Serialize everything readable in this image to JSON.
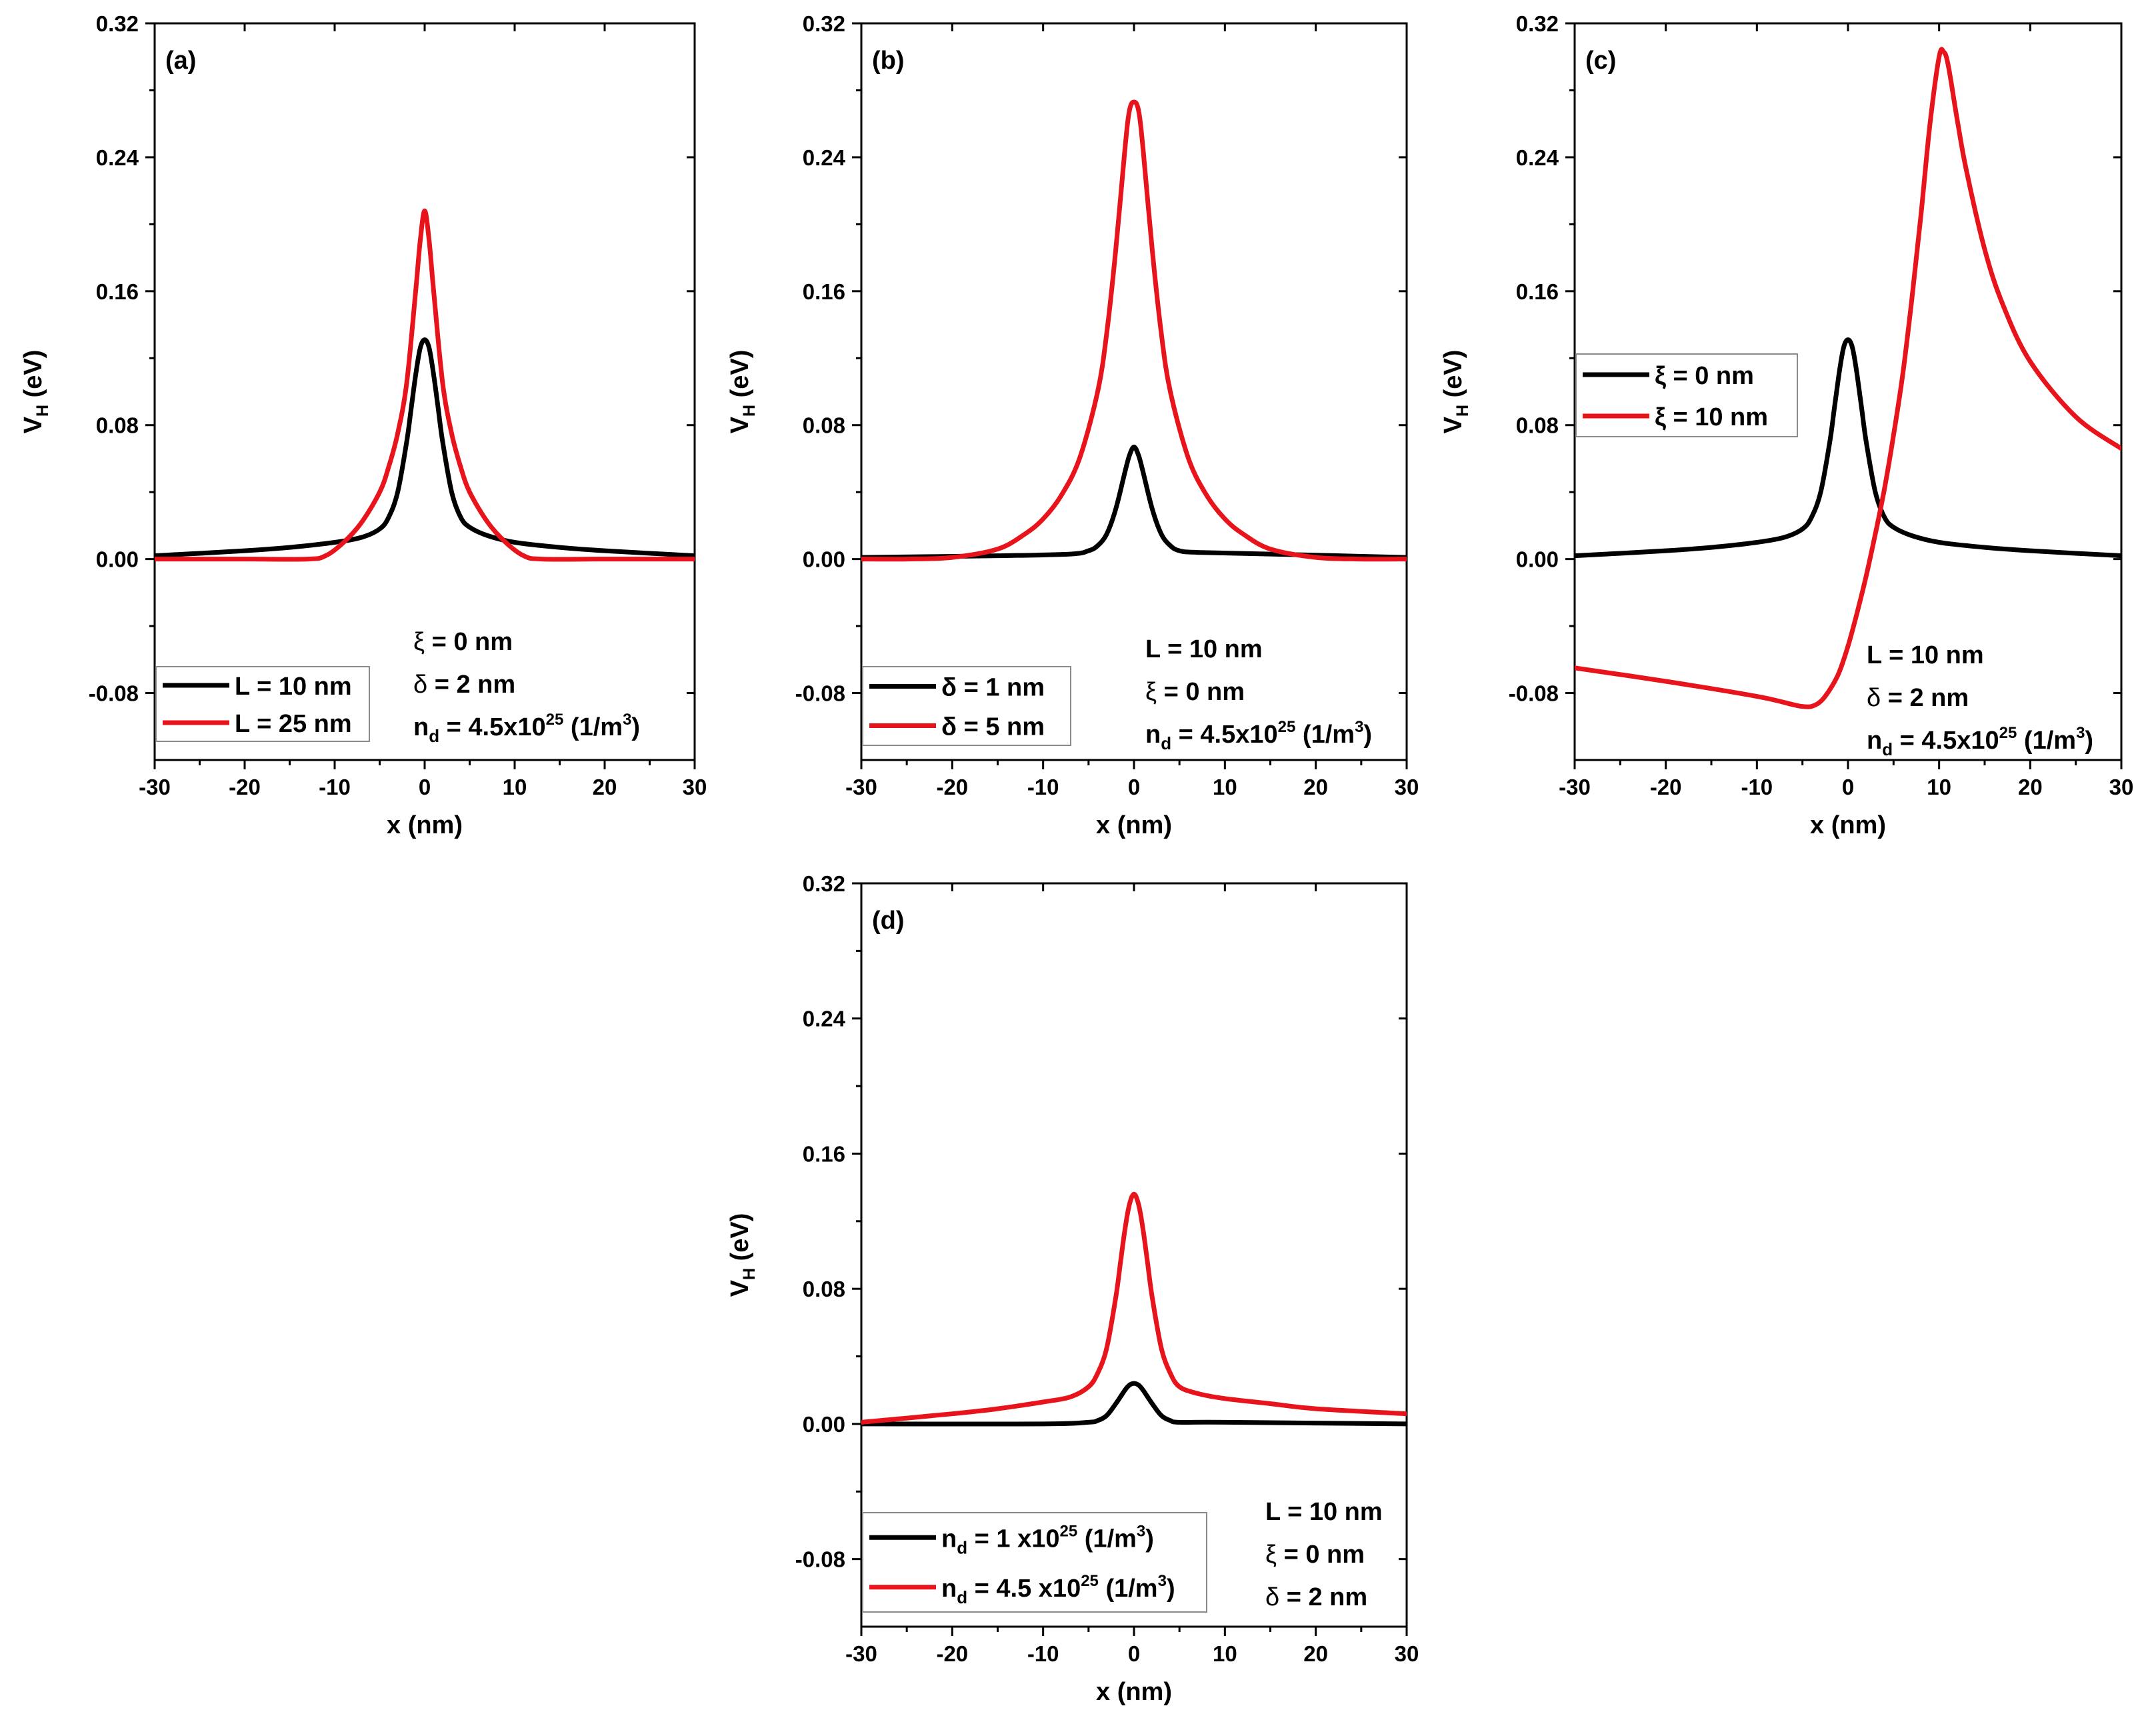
{
  "colors": {
    "black": "#000000",
    "red": "#e8141b"
  },
  "chart_data": [
    {
      "type": "line",
      "panel_label": "(a)",
      "xlabel": "x (nm)",
      "ylabel": "V_H (eV)",
      "xlim": [
        -30,
        30
      ],
      "ylim": [
        -0.12,
        0.32
      ],
      "xticks": [
        -30,
        -20,
        -10,
        0,
        10,
        20,
        30
      ],
      "yticks": [
        -0.08,
        0.0,
        0.08,
        0.16,
        0.24,
        0.32
      ],
      "xtick_labels": [
        "-30",
        "-20",
        "-10",
        "0",
        "10",
        "20",
        "30"
      ],
      "ytick_labels": [
        "-0.08",
        "0.00",
        "0.08",
        "0.16",
        "0.24",
        "0.32"
      ],
      "legend_position": "bottom-left",
      "series": [
        {
          "name": "L = 10 nm",
          "color": "#000000",
          "x": [
            -30,
            -20,
            -15,
            -10,
            -7,
            -5,
            -4,
            -3,
            -2,
            -1.5,
            -1,
            -0.5,
            0,
            0.5,
            1,
            1.5,
            2,
            3,
            4,
            5,
            7,
            10,
            15,
            20,
            30
          ],
          "y": [
            0.002,
            0.005,
            0.007,
            0.01,
            0.013,
            0.018,
            0.025,
            0.04,
            0.07,
            0.09,
            0.11,
            0.126,
            0.131,
            0.126,
            0.11,
            0.09,
            0.07,
            0.04,
            0.025,
            0.019,
            0.014,
            0.01,
            0.007,
            0.005,
            0.002
          ]
        },
        {
          "name": "L = 25 nm",
          "color": "#e8141b",
          "x": [
            -30,
            -20,
            -13,
            -11,
            -9,
            -7,
            -5,
            -4,
            -3,
            -2,
            -1,
            -0.5,
            0,
            0.5,
            1,
            2,
            3,
            4,
            5,
            7,
            9,
            11,
            13,
            20,
            30
          ],
          "y": [
            0.0,
            0.0,
            0.0,
            0.002,
            0.01,
            0.022,
            0.04,
            0.055,
            0.075,
            0.105,
            0.16,
            0.19,
            0.208,
            0.19,
            0.16,
            0.105,
            0.075,
            0.055,
            0.04,
            0.022,
            0.01,
            0.002,
            0.0,
            0.0,
            0.0
          ]
        }
      ],
      "annotations": [
        {
          "symbol": "ξ",
          "text": " = 0 nm"
        },
        {
          "symbol": "δ",
          "text": " = 2 nm"
        },
        {
          "base": "n",
          "sub": "d",
          "middle": " = 4.5x10",
          "sup": "25",
          "tail1": " (1/m",
          "sup2": "3",
          "tail2": ")"
        }
      ],
      "legend": [
        {
          "parts": [
            {
              "t": "L = 10 nm"
            }
          ]
        },
        {
          "parts": [
            {
              "t": "L = 25 nm"
            }
          ]
        }
      ]
    },
    {
      "type": "line",
      "panel_label": "(b)",
      "xlabel": "x (nm)",
      "ylabel": "V_H (eV)",
      "xlim": [
        -30,
        30
      ],
      "ylim": [
        -0.12,
        0.32
      ],
      "xticks": [
        -30,
        -20,
        -10,
        0,
        10,
        20,
        30
      ],
      "yticks": [
        -0.08,
        0.0,
        0.08,
        0.16,
        0.24,
        0.32
      ],
      "xtick_labels": [
        "-30",
        "-20",
        "-10",
        "0",
        "10",
        "20",
        "30"
      ],
      "ytick_labels": [
        "-0.08",
        "0.00",
        "0.08",
        "0.16",
        "0.24",
        "0.32"
      ],
      "legend_position": "bottom-left",
      "series": [
        {
          "name": "δ = 1 nm",
          "color": "#000000",
          "x": [
            -30,
            -15,
            -7,
            -5,
            -4,
            -3,
            -2,
            -1,
            -0.5,
            0,
            0.5,
            1,
            2,
            3,
            4,
            5,
            7,
            15,
            30
          ],
          "y": [
            0.001,
            0.002,
            0.003,
            0.005,
            0.008,
            0.015,
            0.03,
            0.052,
            0.062,
            0.067,
            0.062,
            0.052,
            0.03,
            0.015,
            0.008,
            0.005,
            0.004,
            0.003,
            0.001
          ]
        },
        {
          "name": "δ = 5 nm",
          "color": "#e8141b",
          "x": [
            -30,
            -25,
            -20,
            -15,
            -12,
            -10,
            -8,
            -6,
            -4,
            -3,
            -2,
            -1,
            -0.5,
            0,
            0.5,
            1,
            2,
            3,
            4,
            6,
            8,
            10,
            12,
            15,
            20,
            25,
            30
          ],
          "y": [
            0.0,
            0.0,
            0.001,
            0.006,
            0.015,
            0.024,
            0.038,
            0.06,
            0.1,
            0.135,
            0.185,
            0.245,
            0.268,
            0.273,
            0.268,
            0.245,
            0.185,
            0.135,
            0.1,
            0.06,
            0.038,
            0.024,
            0.015,
            0.006,
            0.001,
            0.0,
            0.0
          ]
        }
      ],
      "annotations": [
        {
          "text": "L = 10 nm"
        },
        {
          "symbol": "ξ",
          "text": " = 0 nm"
        },
        {
          "base": "n",
          "sub": "d",
          "middle": " = 4.5x10",
          "sup": "25",
          "tail1": " (1/m",
          "sup2": "3",
          "tail2": ")"
        }
      ],
      "legend": [
        {
          "parts": [
            {
              "t": "δ = 1 nm"
            }
          ]
        },
        {
          "parts": [
            {
              "t": "δ = 5 nm"
            }
          ]
        }
      ]
    },
    {
      "type": "line",
      "panel_label": "(c)",
      "xlabel": "x (nm)",
      "ylabel": "V_H (eV)",
      "xlim": [
        -30,
        30
      ],
      "ylim": [
        -0.12,
        0.32
      ],
      "xticks": [
        -30,
        -20,
        -10,
        0,
        10,
        20,
        30
      ],
      "yticks": [
        -0.08,
        0.0,
        0.08,
        0.16,
        0.24,
        0.32
      ],
      "xtick_labels": [
        "-30",
        "-20",
        "-10",
        "0",
        "10",
        "20",
        "30"
      ],
      "ytick_labels": [
        "-0.08",
        "0.00",
        "0.08",
        "0.16",
        "0.24",
        "0.32"
      ],
      "legend_position": "middle-left",
      "series": [
        {
          "name": "ξ = 0 nm",
          "color": "#000000",
          "x": [
            -30,
            -20,
            -15,
            -10,
            -7,
            -5,
            -4,
            -3,
            -2,
            -1.5,
            -1,
            -0.5,
            0,
            0.5,
            1,
            1.5,
            2,
            3,
            4,
            5,
            7,
            10,
            15,
            20,
            30
          ],
          "y": [
            0.002,
            0.005,
            0.007,
            0.01,
            0.013,
            0.018,
            0.025,
            0.04,
            0.07,
            0.09,
            0.11,
            0.126,
            0.131,
            0.126,
            0.11,
            0.09,
            0.07,
            0.04,
            0.025,
            0.019,
            0.014,
            0.01,
            0.007,
            0.005,
            0.002
          ]
        },
        {
          "name": "ξ = 10 nm",
          "color": "#e8141b",
          "x": [
            -30,
            -20,
            -10,
            -6,
            -5,
            -4,
            -3,
            -2,
            -1,
            0,
            1,
            2,
            3,
            4,
            5,
            6,
            7,
            8,
            9,
            10,
            10.5,
            11,
            12,
            13,
            15,
            17,
            20,
            25,
            30
          ],
          "y": [
            -0.065,
            -0.073,
            -0.082,
            -0.087,
            -0.088,
            -0.088,
            -0.085,
            -0.078,
            -0.068,
            -0.052,
            -0.032,
            -0.01,
            0.015,
            0.042,
            0.074,
            0.11,
            0.155,
            0.205,
            0.26,
            0.3,
            0.303,
            0.295,
            0.262,
            0.232,
            0.185,
            0.152,
            0.118,
            0.085,
            0.066
          ]
        }
      ],
      "annotations": [
        {
          "text": "L = 10 nm"
        },
        {
          "symbol": "δ",
          "text": " = 2 nm"
        },
        {
          "base": "n",
          "sub": "d",
          "middle": " = 4.5x10",
          "sup": "25",
          "tail1": " (1/m",
          "sup2": "3",
          "tail2": ")"
        }
      ],
      "legend": [
        {
          "parts": [
            {
              "t": "ξ = 0 nm"
            }
          ]
        },
        {
          "parts": [
            {
              "t": "ξ = 10 nm"
            }
          ]
        }
      ]
    },
    {
      "type": "line",
      "panel_label": "(d)",
      "xlabel": "x (nm)",
      "ylabel": "V_H (eV)",
      "xlim": [
        -30,
        30
      ],
      "ylim": [
        -0.12,
        0.32
      ],
      "xticks": [
        -30,
        -20,
        -10,
        0,
        10,
        20,
        30
      ],
      "yticks": [
        -0.08,
        0.0,
        0.08,
        0.16,
        0.24,
        0.32
      ],
      "xtick_labels": [
        "-30",
        "-20",
        "-10",
        "0",
        "10",
        "20",
        "30"
      ],
      "ytick_labels": [
        "-0.08",
        "0.00",
        "0.08",
        "0.16",
        "0.24",
        "0.32"
      ],
      "legend_position": "bottom-left",
      "series": [
        {
          "name": "n_d = 1 x10^25 (1/m^3)",
          "color": "#000000",
          "x": [
            -30,
            -10,
            -5,
            -4,
            -3,
            -2,
            -1,
            -0.5,
            0,
            0.5,
            1,
            2,
            3,
            4,
            5,
            10,
            30
          ],
          "y": [
            0.0,
            0.0,
            0.001,
            0.002,
            0.005,
            0.012,
            0.02,
            0.023,
            0.024,
            0.023,
            0.02,
            0.012,
            0.005,
            0.002,
            0.001,
            0.001,
            0.0
          ]
        },
        {
          "name": "n_d = 4.5 x10^25 (1/m^3)",
          "color": "#e8141b",
          "x": [
            -30,
            -20,
            -15,
            -10,
            -7,
            -5,
            -4,
            -3,
            -2,
            -1.5,
            -1,
            -0.5,
            0,
            0.5,
            1,
            1.5,
            2,
            3,
            4,
            5,
            7,
            10,
            15,
            20,
            30
          ],
          "y": [
            0.001,
            0.006,
            0.009,
            0.013,
            0.016,
            0.022,
            0.03,
            0.045,
            0.075,
            0.095,
            0.115,
            0.13,
            0.136,
            0.13,
            0.115,
            0.095,
            0.075,
            0.045,
            0.03,
            0.022,
            0.018,
            0.015,
            0.012,
            0.009,
            0.006
          ]
        }
      ],
      "annotations": [
        {
          "text": "L = 10 nm"
        },
        {
          "symbol": "ξ",
          "text": " = 0 nm"
        },
        {
          "symbol": "δ",
          "text": " = 2 nm"
        }
      ],
      "legend": [
        {
          "parts": [
            {
              "t": "n"
            },
            {
              "t": "d",
              "sub": true
            },
            {
              "t": " = 1 x10"
            },
            {
              "t": "25",
              "sup": true
            },
            {
              "t": " (1/m"
            },
            {
              "t": "3",
              "sup": true
            },
            {
              "t": ")"
            }
          ]
        },
        {
          "parts": [
            {
              "t": "n"
            },
            {
              "t": "d",
              "sub": true
            },
            {
              "t": " = 4.5 x10"
            },
            {
              "t": "25",
              "sup": true
            },
            {
              "t": " (1/m"
            },
            {
              "t": "3",
              "sup": true
            },
            {
              "t": ")"
            }
          ]
        }
      ]
    }
  ]
}
